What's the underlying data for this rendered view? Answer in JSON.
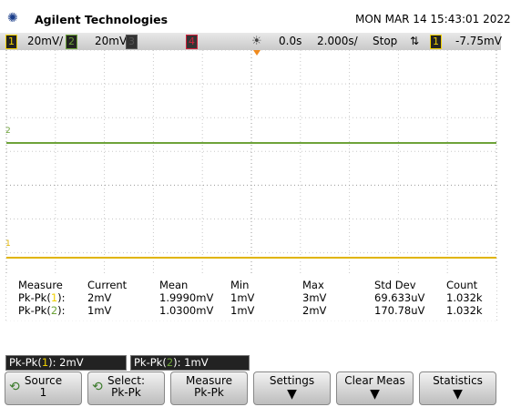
{
  "header": {
    "brand": "Agilent Technologies",
    "datetime": "MON MAR 14 15:43:01 2022"
  },
  "status_bar": {
    "channels": [
      {
        "number": "1",
        "scale": "20mV/"
      },
      {
        "number": "2",
        "scale": "20mV/"
      },
      {
        "number": "3"
      },
      {
        "number": "4"
      }
    ],
    "time_delay": "0.0s",
    "time_scale": "2.000s/",
    "run_state": "Stop",
    "trigger_slope": "⇅",
    "trigger_source": "1",
    "trigger_level": "-7.75mV"
  },
  "graticule": {
    "markers": [
      "2",
      "1"
    ]
  },
  "measurements": {
    "headers": [
      "Measure",
      "Current",
      "Mean",
      "Min",
      "Max",
      "Std Dev",
      "Count"
    ],
    "rows": [
      {
        "label": [
          "Pk-Pk(",
          "1",
          "):"
        ],
        "cells": [
          "2mV",
          "1.9990mV",
          "1mV",
          "3mV",
          "69.633uV",
          "1.032k"
        ]
      },
      {
        "label": [
          "Pk-Pk(",
          "2",
          "):"
        ],
        "cells": [
          "1mV",
          "1.0300mV",
          "1mV",
          "2mV",
          "170.78uV",
          "1.032k"
        ]
      }
    ]
  },
  "readouts": [
    [
      "Pk-Pk(",
      "1",
      "): 2mV"
    ],
    [
      "Pk-Pk(",
      "2",
      "): 1mV"
    ]
  ],
  "softkeys": [
    {
      "title": "Source",
      "value": "1"
    },
    {
      "title": "Select:",
      "value": "Pk-Pk"
    },
    {
      "title": "Measure",
      "value": "Pk-Pk"
    },
    {
      "title": "Settings"
    },
    {
      "title": "Clear Meas"
    },
    {
      "title": "Statistics"
    }
  ]
}
